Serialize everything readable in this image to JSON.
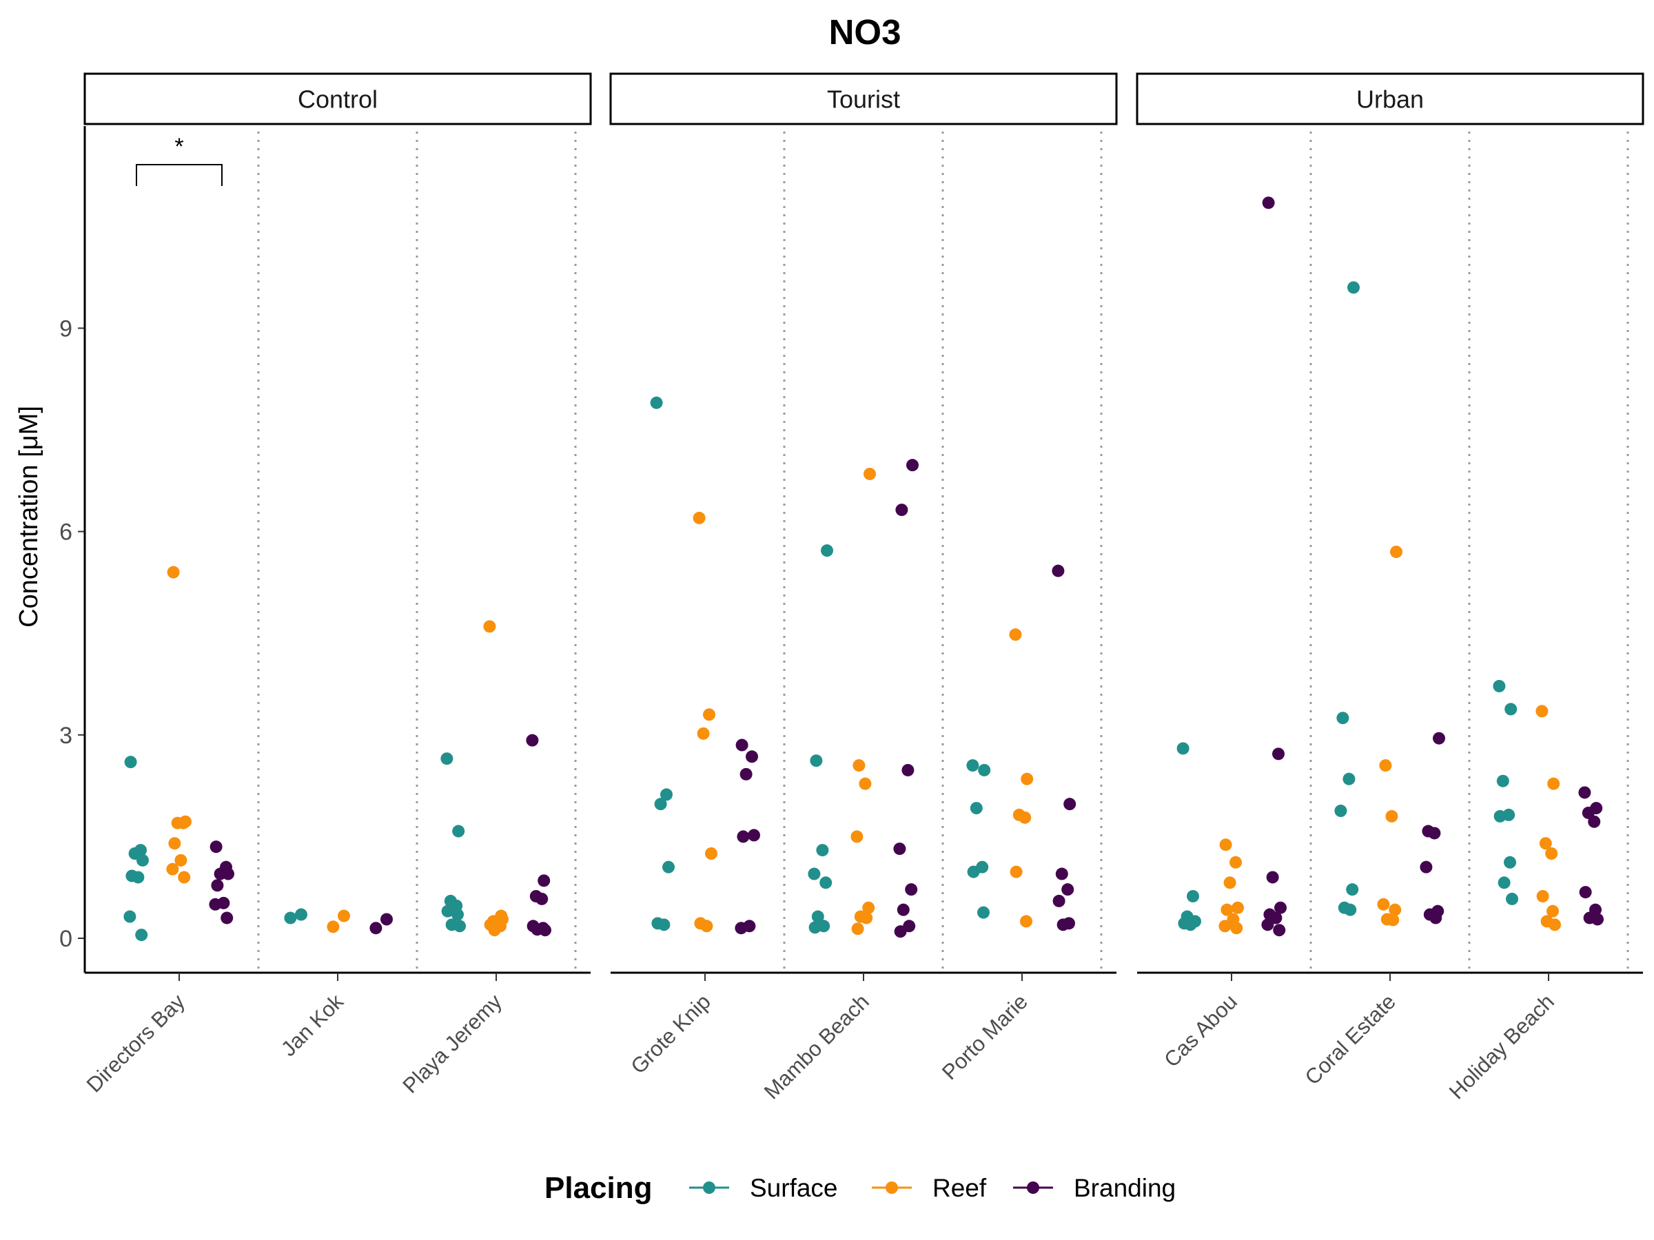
{
  "chart_data": {
    "type": "scatter",
    "title": "NO3",
    "ylabel": "Concentration [μM]",
    "xlabel": "",
    "ylim": [
      -0.5,
      12.0
    ],
    "yticks": [
      0,
      3,
      6,
      9
    ],
    "grid": false,
    "legend": {
      "title": "Placing",
      "position": "bottom"
    },
    "colors": {
      "Surface": "#21908C",
      "Reef": "#F8900C",
      "Branding": "#44054F"
    },
    "series_names": [
      "Surface",
      "Reef",
      "Branding"
    ],
    "annotation": {
      "text": "*",
      "panel": "Control",
      "site": "Directors Bay",
      "between": [
        "Surface",
        "Branding"
      ]
    },
    "panels": [
      {
        "name": "Control",
        "sites": [
          {
            "name": "Directors Bay",
            "Surface": [
              2.6,
              1.3,
              1.25,
              1.15,
              0.92,
              0.9,
              0.32,
              0.05
            ],
            "Reef": [
              5.4,
              1.7,
              1.7,
              1.72,
              1.4,
              1.15,
              1.02,
              0.9
            ],
            "Branding": [
              1.35,
              1.05,
              0.95,
              0.95,
              0.78,
              0.52,
              0.5,
              0.3
            ]
          },
          {
            "name": "Jan Kok",
            "Surface": [
              0.35,
              0.3
            ],
            "Reef": [
              0.33,
              0.17
            ],
            "Branding": [
              0.28,
              0.15
            ]
          },
          {
            "name": "Playa Jeremy",
            "Surface": [
              2.65,
              1.58,
              0.55,
              0.48,
              0.4,
              0.35,
              0.2,
              0.18
            ],
            "Reef": [
              4.6,
              0.33,
              0.25,
              0.22,
              0.2,
              0.18,
              0.12,
              0.28
            ],
            "Branding": [
              2.92,
              0.85,
              0.62,
              0.58,
              0.18,
              0.15,
              0.13,
              0.12
            ]
          }
        ]
      },
      {
        "name": "Tourist",
        "sites": [
          {
            "name": "Grote Knip",
            "Surface": [
              7.9,
              2.12,
              1.98,
              1.05,
              0.22,
              0.2
            ],
            "Reef": [
              6.2,
              3.3,
              3.02,
              1.25,
              0.22,
              0.18
            ],
            "Branding": [
              2.85,
              2.68,
              2.42,
              1.52,
              1.5,
              0.18,
              0.15
            ]
          },
          {
            "name": "Mambo Beach",
            "Surface": [
              5.72,
              2.62,
              1.3,
              0.95,
              0.82,
              0.32,
              0.18,
              0.16
            ],
            "Reef": [
              6.85,
              2.55,
              2.28,
              1.5,
              0.45,
              0.32,
              0.3,
              0.14
            ],
            "Branding": [
              6.98,
              6.32,
              2.48,
              1.32,
              0.72,
              0.42,
              0.18,
              0.1
            ]
          },
          {
            "name": "Porto Marie",
            "Surface": [
              2.55,
              2.48,
              1.92,
              1.05,
              0.98,
              0.38
            ],
            "Reef": [
              4.48,
              2.35,
              1.82,
              1.78,
              0.98,
              0.25
            ],
            "Branding": [
              5.42,
              1.98,
              0.95,
              0.72,
              0.55,
              0.22,
              0.2
            ]
          }
        ]
      },
      {
        "name": "Urban",
        "sites": [
          {
            "name": "Cas Abou",
            "Surface": [
              2.8,
              0.62,
              0.32,
              0.25,
              0.22,
              0.2
            ],
            "Reef": [
              1.38,
              1.12,
              0.82,
              0.45,
              0.42,
              0.28,
              0.18,
              0.15
            ],
            "Branding": [
              10.85,
              2.72,
              0.9,
              0.45,
              0.35,
              0.3,
              0.2,
              0.12
            ]
          },
          {
            "name": "Coral Estate",
            "Surface": [
              9.6,
              3.25,
              2.35,
              1.88,
              0.72,
              0.45,
              0.42
            ],
            "Reef": [
              5.7,
              2.55,
              1.8,
              0.5,
              0.42,
              0.28,
              0.27
            ],
            "Branding": [
              2.95,
              1.58,
              1.55,
              1.05,
              0.4,
              0.35,
              0.3
            ]
          },
          {
            "name": "Holiday Beach",
            "Surface": [
              3.72,
              3.38,
              2.32,
              1.82,
              1.8,
              1.12,
              0.82,
              0.58
            ],
            "Reef": [
              3.35,
              2.28,
              1.4,
              1.25,
              0.62,
              0.4,
              0.25,
              0.2
            ],
            "Branding": [
              2.15,
              1.92,
              1.85,
              1.72,
              0.68,
              0.42,
              0.3,
              0.28
            ]
          }
        ]
      }
    ]
  }
}
